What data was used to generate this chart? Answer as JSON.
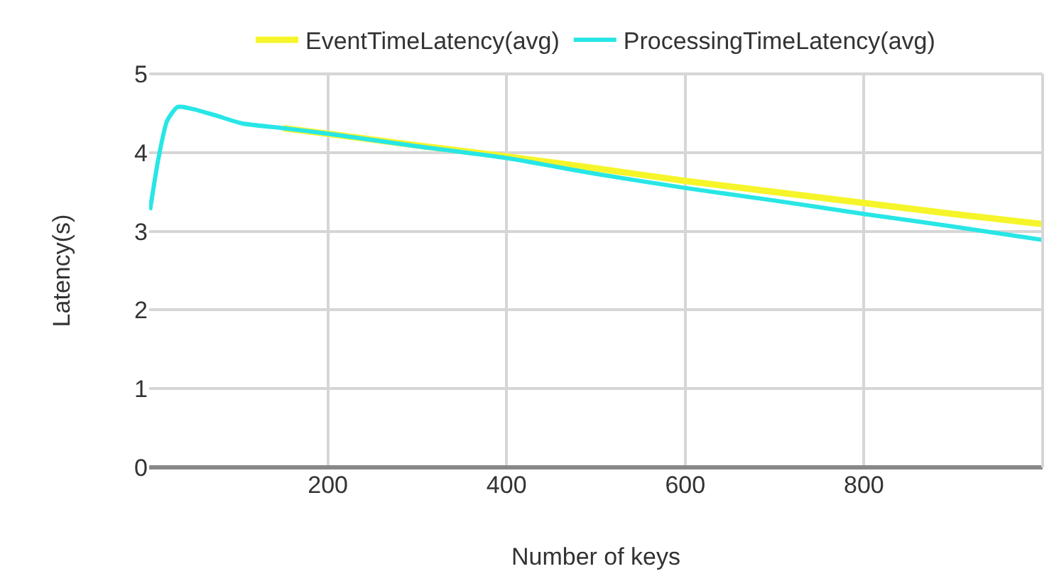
{
  "chart_data": {
    "type": "line",
    "xlabel": "Number of keys",
    "ylabel": "Latency(s)",
    "x": [
      1,
      10,
      20,
      32,
      50,
      75,
      104,
      150,
      200,
      300,
      400,
      500,
      600,
      700,
      800,
      900,
      1000
    ],
    "series": [
      {
        "name": "EventTimeLatency(avg)",
        "color": "#f5f52a",
        "values": [
          null,
          null,
          null,
          null,
          null,
          null,
          null,
          4.31,
          4.24,
          4.09,
          3.95,
          3.8,
          3.64,
          3.5,
          3.36,
          3.22,
          3.09
        ]
      },
      {
        "name": "ProcessingTimeLatency(avg)",
        "color": "#28e6e6",
        "values": [
          3.27,
          3.9,
          4.4,
          4.58,
          4.55,
          4.47,
          4.37,
          4.31,
          4.24,
          4.08,
          3.93,
          3.73,
          3.55,
          3.39,
          3.22,
          3.06,
          2.89
        ]
      }
    ],
    "xlim": [
      0,
      1000
    ],
    "xticks": [
      200,
      400,
      600,
      800
    ],
    "ylim": [
      0,
      5
    ],
    "yticks": [
      0,
      1,
      2,
      3,
      4,
      5
    ],
    "grid": true,
    "legend": "top",
    "marker": "none",
    "line_style": "solid"
  }
}
